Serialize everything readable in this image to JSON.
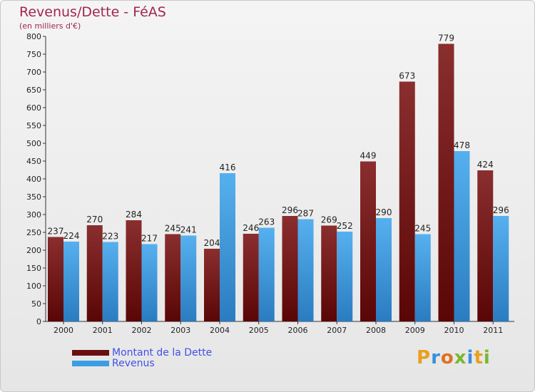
{
  "title": "Revenus/Dette - FéAS",
  "subtitle": "(en milliers d'€)",
  "colors": {
    "dette": "#7a1c1c",
    "revenus": "#3c9ee2",
    "title": "#a2264c",
    "legend_text": "#4050e8"
  },
  "legend": [
    {
      "label": "Montant de la Dette",
      "color": "#6a1010"
    },
    {
      "label": "Revenus",
      "color": "#3c9ee2"
    }
  ],
  "logo": {
    "text": "Proxiti",
    "letter_colors": [
      "#e8a020",
      "#3b8fd8",
      "#e07020",
      "#7ab830",
      "#3b8fd8",
      "#e8a020",
      "#7ab830"
    ]
  },
  "chart_data": {
    "type": "bar",
    "categories": [
      "2000",
      "2001",
      "2002",
      "2003",
      "2004",
      "2005",
      "2006",
      "2007",
      "2008",
      "2009",
      "2010",
      "2011"
    ],
    "series": [
      {
        "name": "Montant de la Dette",
        "values": [
          237,
          270,
          284,
          245,
          204,
          246,
          296,
          269,
          449,
          673,
          779,
          424
        ]
      },
      {
        "name": "Revenus",
        "values": [
          224,
          223,
          217,
          241,
          416,
          263,
          287,
          252,
          290,
          245,
          478,
          296
        ]
      }
    ],
    "ylim": [
      0,
      800
    ],
    "yticks": [
      0,
      50,
      100,
      150,
      200,
      250,
      300,
      350,
      400,
      450,
      500,
      550,
      600,
      650,
      700,
      750,
      800
    ],
    "grid": false,
    "legend_position": "bottom-left"
  }
}
